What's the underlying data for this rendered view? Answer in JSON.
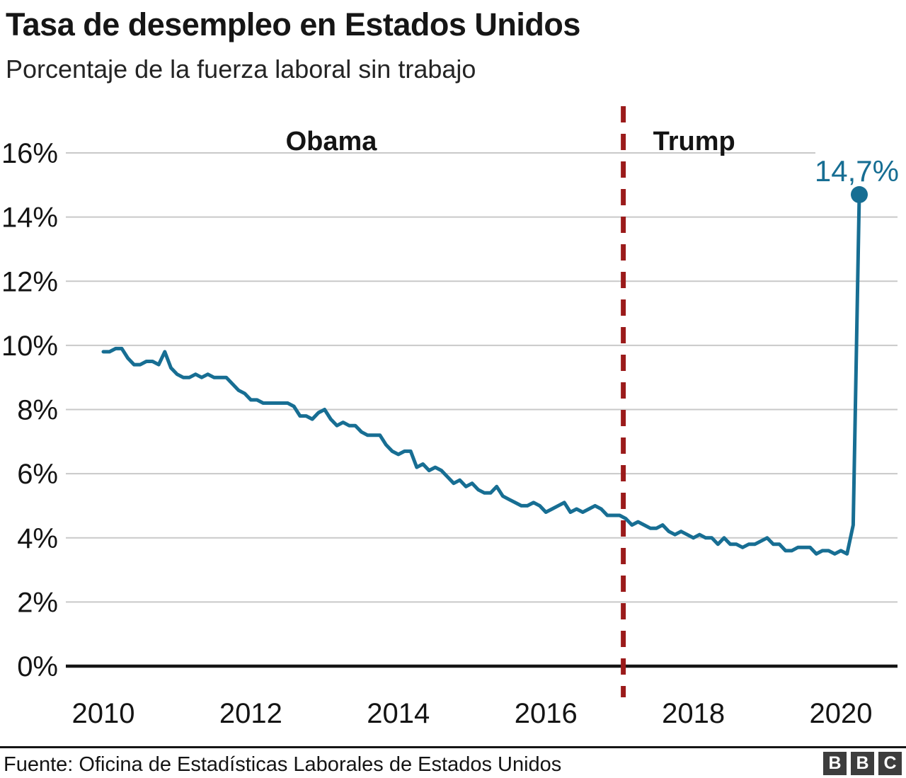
{
  "header": {
    "title": "Tasa de desempleo en Estados Unidos",
    "subtitle": "Porcentaje de la fuerza laboral sin trabajo"
  },
  "chart_data": {
    "type": "line",
    "title": "Tasa de desempleo en Estados Unidos",
    "subtitle": "Porcentaje de la fuerza laboral sin trabajo",
    "series": [
      {
        "name": "Tasa de desempleo (%)",
        "start": "2010-01",
        "frequency": "monthly",
        "values": [
          9.8,
          9.8,
          9.9,
          9.9,
          9.6,
          9.4,
          9.4,
          9.5,
          9.5,
          9.4,
          9.8,
          9.3,
          9.1,
          9.0,
          9.0,
          9.1,
          9.0,
          9.1,
          9.0,
          9.0,
          9.0,
          8.8,
          8.6,
          8.5,
          8.3,
          8.3,
          8.2,
          8.2,
          8.2,
          8.2,
          8.2,
          8.1,
          7.8,
          7.8,
          7.7,
          7.9,
          8.0,
          7.7,
          7.5,
          7.6,
          7.5,
          7.5,
          7.3,
          7.2,
          7.2,
          7.2,
          6.9,
          6.7,
          6.6,
          6.7,
          6.7,
          6.2,
          6.3,
          6.1,
          6.2,
          6.1,
          5.9,
          5.7,
          5.8,
          5.6,
          5.7,
          5.5,
          5.4,
          5.4,
          5.6,
          5.3,
          5.2,
          5.1,
          5.0,
          5.0,
          5.1,
          5.0,
          4.8,
          4.9,
          5.0,
          5.1,
          4.8,
          4.9,
          4.8,
          4.9,
          5.0,
          4.9,
          4.7,
          4.7,
          4.7,
          4.6,
          4.4,
          4.5,
          4.4,
          4.3,
          4.3,
          4.4,
          4.2,
          4.1,
          4.2,
          4.1,
          4.0,
          4.1,
          4.0,
          4.0,
          3.8,
          4.0,
          3.8,
          3.8,
          3.7,
          3.8,
          3.8,
          3.9,
          4.0,
          3.8,
          3.8,
          3.6,
          3.6,
          3.7,
          3.7,
          3.7,
          3.5,
          3.6,
          3.6,
          3.5,
          3.6,
          3.5,
          4.4,
          14.7
        ]
      }
    ],
    "xticks": [
      2010,
      2012,
      2014,
      2016,
      2018,
      2020
    ],
    "yticks": [
      0,
      2,
      4,
      6,
      8,
      10,
      12,
      14,
      16
    ],
    "ytick_suffix": "%",
    "ylim": [
      0,
      16
    ],
    "grid": "horizontal",
    "line_color": "#176e93",
    "annotations": {
      "terms": [
        {
          "label": "Obama",
          "x_year": 2013.09
        },
        {
          "label": "Trump",
          "x_year": 2018.01
        }
      ],
      "term_divider": {
        "x_year": 2017.05,
        "color": "#9b1b1b",
        "style": "dashed"
      },
      "last_value_label": "14,7%"
    }
  },
  "footer": {
    "source": "Fuente: Oficina de Estadísticas Laborales de Estados Unidos",
    "logo_letters": [
      "B",
      "B",
      "C"
    ]
  }
}
